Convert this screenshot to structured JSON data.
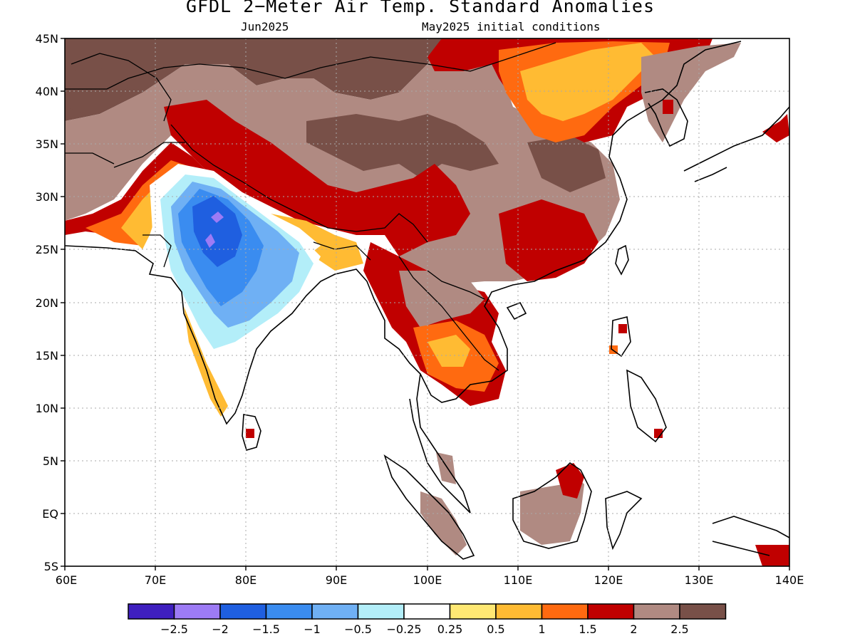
{
  "title": "GFDL 2−Meter Air Temp. Standard Anomalies",
  "subtitle_left": "Jun2025",
  "subtitle_right": "May2025 initial conditions",
  "map": {
    "lon_range": [
      60,
      140
    ],
    "lat_range": [
      -5,
      45
    ],
    "lat_labels": [
      "45N",
      "40N",
      "35N",
      "30N",
      "25N",
      "20N",
      "15N",
      "10N",
      "5N",
      "EQ",
      "5S"
    ],
    "lon_labels": [
      "60E",
      "70E",
      "80E",
      "90E",
      "100E",
      "110E",
      "120E",
      "130E",
      "140E"
    ],
    "grid": "dotted"
  },
  "colorbar": {
    "colors": [
      "#3f1fbf",
      "#9d7bf5",
      "#1f5fe0",
      "#3a8cf0",
      "#6fb0f4",
      "#b3eef9",
      "#ffffff",
      "#ffe873",
      "#ffbb33",
      "#ff6a10",
      "#c00000",
      "#b08a82",
      "#785048"
    ],
    "labels": [
      "−2.5",
      "−2",
      "−1.5",
      "−1",
      "−0.5",
      "−0.25",
      "0.25",
      "0.5",
      "1",
      "1.5",
      "2",
      "2.5"
    ]
  }
}
